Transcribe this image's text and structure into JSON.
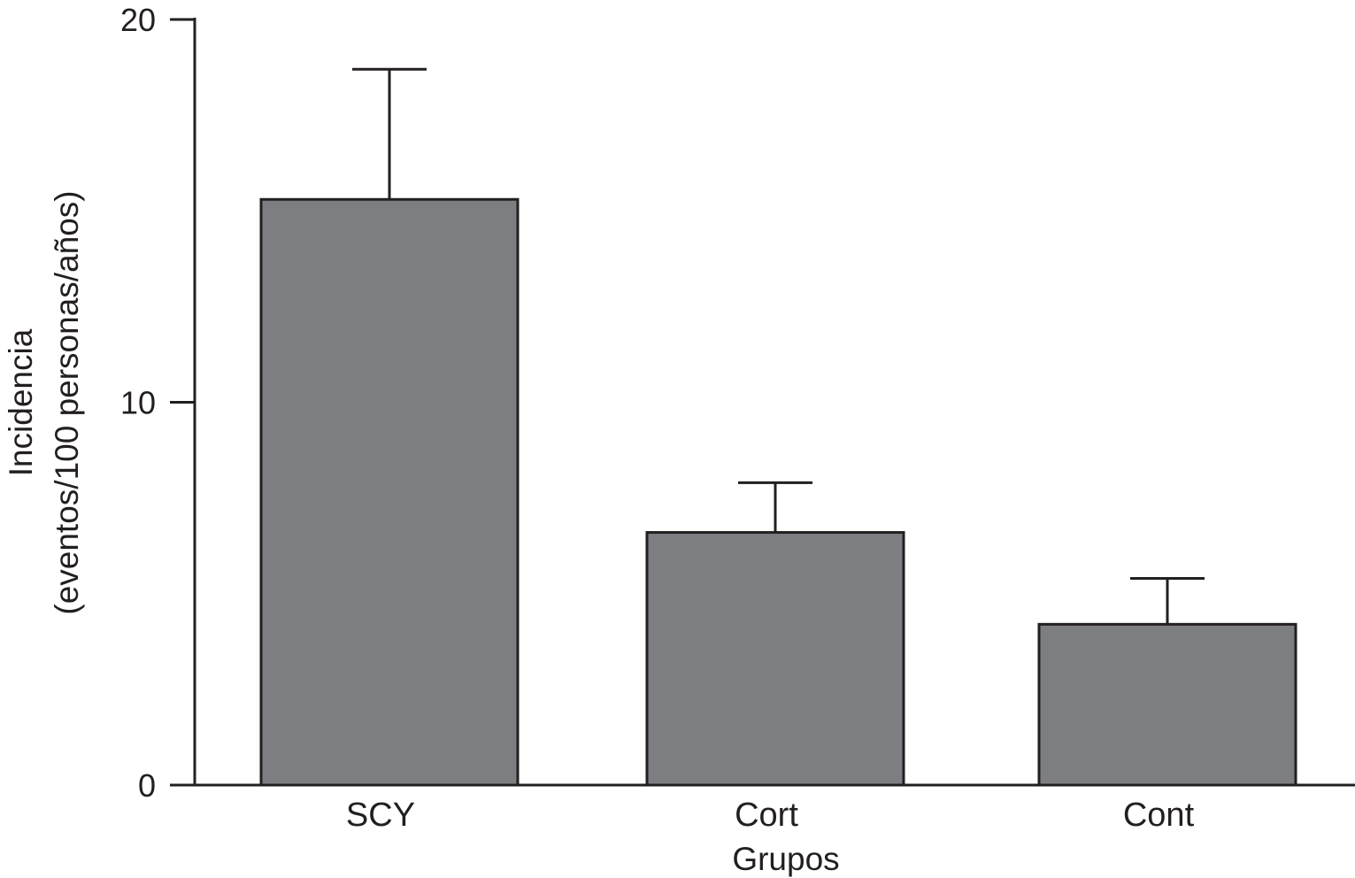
{
  "chart_data": {
    "type": "bar",
    "categories": [
      "SCY",
      "Cort",
      "Cont"
    ],
    "values": [
      15.3,
      6.6,
      4.2
    ],
    "error_upper": [
      18.7,
      7.9,
      5.4
    ],
    "xlabel": "Grupos",
    "ylabel_line1": "Incidencia",
    "ylabel_line2": "(eventos/100 personas/años)",
    "ylim": [
      0,
      20
    ],
    "yticks": [
      0,
      10,
      20
    ],
    "ytick_labels": [
      "0",
      "10",
      "20"
    ],
    "grid": false,
    "legend": "none",
    "colors": {
      "bar_fill": "#7d7e82",
      "stroke": "#231f20"
    }
  }
}
